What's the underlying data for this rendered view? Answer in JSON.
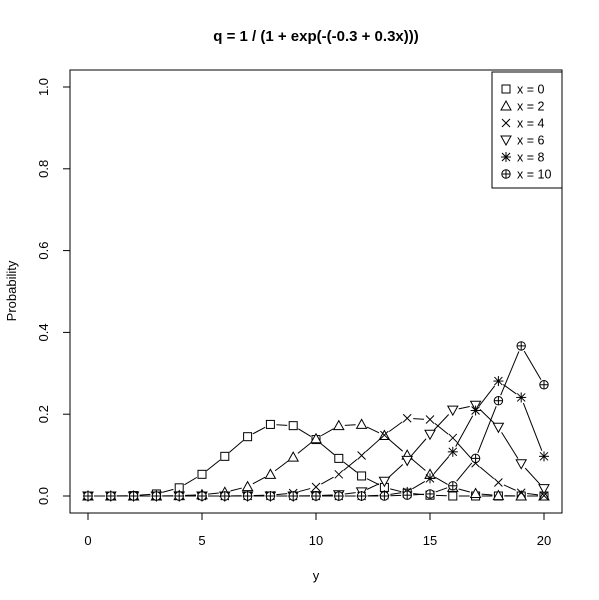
{
  "chart_data": {
    "type": "line",
    "title": "q = 1 / (1 + exp(-(-0.3 + 0.3x)))",
    "xlabel": "y",
    "ylabel": "Probability",
    "xlim": [
      0,
      20
    ],
    "ylim": [
      0,
      1
    ],
    "x_ticks": [
      0,
      5,
      10,
      15,
      20
    ],
    "y_ticks": [
      0.0,
      0.2,
      0.4,
      0.6,
      0.8,
      1.0
    ],
    "x_tick_labels": [
      "0",
      "5",
      "10",
      "15",
      "20"
    ],
    "y_tick_labels": [
      "0.0",
      "0.2",
      "0.4",
      "0.6",
      "0.8",
      "1.0"
    ],
    "legend_position": "top-right",
    "grid": false,
    "x": [
      0,
      1,
      2,
      3,
      4,
      5,
      6,
      7,
      8,
      9,
      10,
      11,
      12,
      13,
      14,
      15,
      16,
      17,
      18,
      19,
      20
    ],
    "series": [
      {
        "name": "x = 0",
        "marker": "square",
        "values": [
          0.0,
          0.0,
          0.001,
          0.005,
          0.02,
          0.053,
          0.097,
          0.145,
          0.175,
          0.172,
          0.138,
          0.092,
          0.049,
          0.021,
          0.007,
          0.002,
          0.0,
          0.0,
          0.0,
          0.0,
          0.0
        ]
      },
      {
        "name": "x = 2",
        "marker": "triangle-up",
        "values": [
          0.0,
          0.0,
          0.0,
          0.0,
          0.001,
          0.003,
          0.009,
          0.023,
          0.053,
          0.095,
          0.14,
          0.172,
          0.175,
          0.148,
          0.1,
          0.053,
          0.021,
          0.006,
          0.001,
          0.0,
          0.0
        ]
      },
      {
        "name": "x = 4",
        "marker": "cross",
        "values": [
          0.0,
          0.0,
          0.0,
          0.0,
          0.0,
          0.0,
          0.0,
          0.001,
          0.002,
          0.007,
          0.022,
          0.053,
          0.099,
          0.149,
          0.19,
          0.187,
          0.142,
          0.08,
          0.033,
          0.008,
          0.001
        ]
      },
      {
        "name": "x = 6",
        "marker": "triangle-down",
        "values": [
          0.0,
          0.0,
          0.0,
          0.0,
          0.0,
          0.0,
          0.0,
          0.0,
          0.0,
          0.0,
          0.001,
          0.003,
          0.01,
          0.036,
          0.087,
          0.151,
          0.21,
          0.222,
          0.168,
          0.079,
          0.018
        ]
      },
      {
        "name": "x = 8",
        "marker": "asterisk",
        "values": [
          0.0,
          0.0,
          0.0,
          0.0,
          0.0,
          0.0,
          0.0,
          0.0,
          0.0,
          0.0,
          0.0,
          0.0,
          0.0,
          0.002,
          0.01,
          0.043,
          0.108,
          0.209,
          0.281,
          0.241,
          0.097
        ]
      },
      {
        "name": "x = 10",
        "marker": "circle-plus",
        "values": [
          0.0,
          0.0,
          0.0,
          0.0,
          0.0,
          0.0,
          0.0,
          0.0,
          0.0,
          0.0,
          0.0,
          0.0,
          0.0,
          0.0,
          0.002,
          0.005,
          0.025,
          0.092,
          0.233,
          0.367,
          0.272
        ]
      }
    ]
  }
}
